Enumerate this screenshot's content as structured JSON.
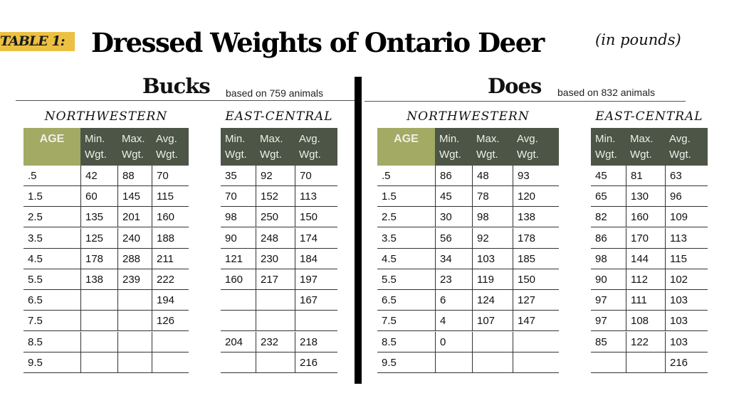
{
  "header": {
    "badge": "TABLE 1:",
    "title": "Dressed Weights of Ontario Deer",
    "units": "(in pounds)",
    "badge_color": "#ecc043"
  },
  "colors": {
    "age_header": "#a2aa63",
    "col_header": "#4c5546"
  },
  "column_headers": {
    "age": "AGE",
    "min": "Min.\nWgt.",
    "max": "Max.\nWgt.",
    "avg": "Avg.\nWgt."
  },
  "ages": [
    ".5",
    "1.5",
    "2.5",
    "3.5",
    "4.5",
    "5.5",
    "6.5",
    "7.5",
    "8.5",
    "9.5"
  ],
  "bucks": {
    "title": "Bucks",
    "basis": "based on 759 animals",
    "northwestern": {
      "label": "NORTHWESTERN",
      "rows": [
        [
          "42",
          "88",
          "70"
        ],
        [
          "60",
          "145",
          "115"
        ],
        [
          "135",
          "201",
          "160"
        ],
        [
          "125",
          "240",
          "188"
        ],
        [
          "178",
          "288",
          "211"
        ],
        [
          "138",
          "239",
          "222"
        ],
        [
          "",
          "",
          "194"
        ],
        [
          "",
          "",
          "126"
        ],
        [
          "",
          "",
          ""
        ],
        [
          "",
          "",
          ""
        ]
      ]
    },
    "east_central": {
      "label": "EAST-CENTRAL",
      "rows": [
        [
          "35",
          "92",
          "70"
        ],
        [
          "70",
          "152",
          "113"
        ],
        [
          "98",
          "250",
          "150"
        ],
        [
          "90",
          "248",
          "174"
        ],
        [
          "121",
          "230",
          "184"
        ],
        [
          "160",
          "217",
          "197"
        ],
        [
          "",
          "",
          "167"
        ],
        [
          "",
          "",
          ""
        ],
        [
          "204",
          "232",
          "218"
        ],
        [
          "",
          "",
          "216"
        ]
      ]
    }
  },
  "does": {
    "title": "Does",
    "basis": "based on 832 animals",
    "northwestern": {
      "label": "NORTHWESTERN",
      "rows": [
        [
          "86",
          "48",
          "93"
        ],
        [
          "45",
          "78",
          "120"
        ],
        [
          "30",
          "98",
          "138"
        ],
        [
          "56",
          "92",
          "178"
        ],
        [
          "34",
          "103",
          "185"
        ],
        [
          "23",
          "119",
          "150"
        ],
        [
          "6",
          "124",
          "127"
        ],
        [
          "4",
          "107",
          "147"
        ],
        [
          "0",
          "",
          ""
        ],
        [
          "",
          "",
          ""
        ]
      ]
    },
    "east_central": {
      "label": "EAST-CENTRAL",
      "rows": [
        [
          "45",
          "81",
          "63"
        ],
        [
          "65",
          "130",
          "96"
        ],
        [
          "82",
          "160",
          "109"
        ],
        [
          "86",
          "170",
          "113"
        ],
        [
          "98",
          "144",
          "115"
        ],
        [
          "90",
          "112",
          "102"
        ],
        [
          "97",
          "111",
          "103"
        ],
        [
          "97",
          "108",
          "103"
        ],
        [
          "85",
          "122",
          "103"
        ],
        [
          "",
          "",
          "216"
        ]
      ]
    }
  }
}
